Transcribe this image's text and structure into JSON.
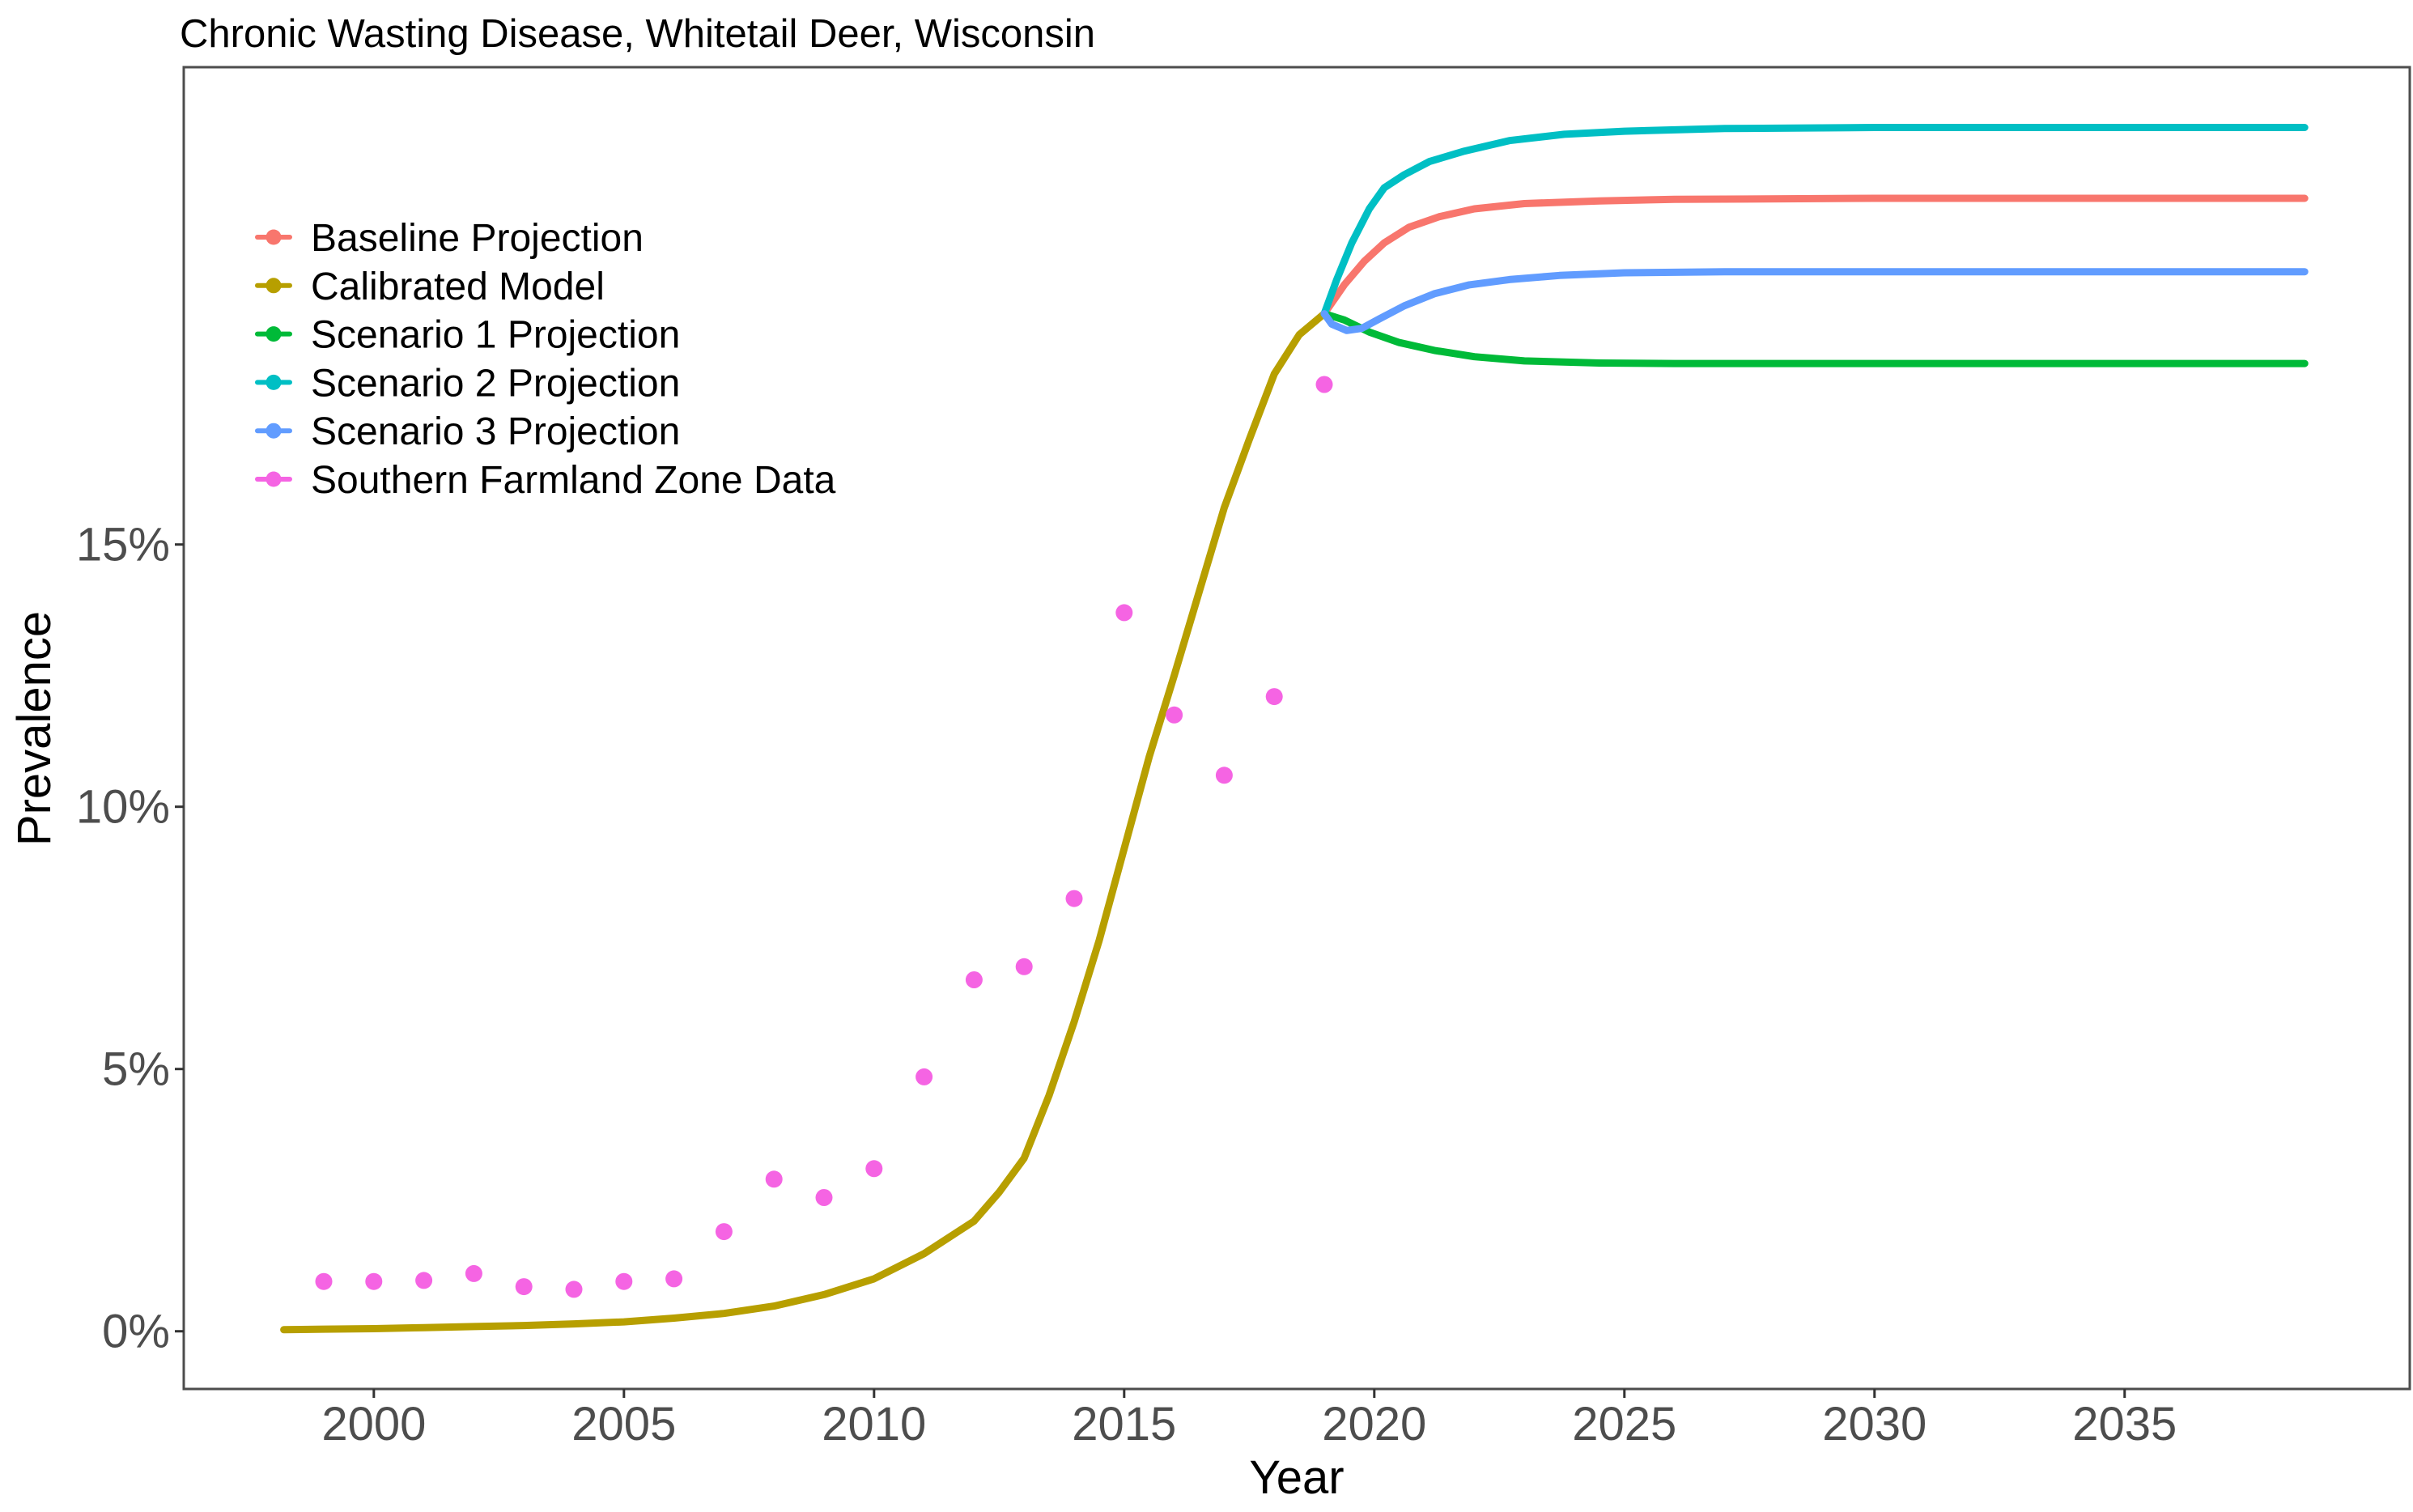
{
  "title": "Chronic Wasting Disease, Whitetail Deer, Wisconsin",
  "x_axis": {
    "label": "Year",
    "ticks": [
      {
        "value": 2000,
        "label": "2000"
      },
      {
        "value": 2005,
        "label": "2005"
      },
      {
        "value": 2010,
        "label": "2010"
      },
      {
        "value": 2015,
        "label": "2015"
      },
      {
        "value": 2020,
        "label": "2020"
      },
      {
        "value": 2025,
        "label": "2025"
      },
      {
        "value": 2030,
        "label": "2030"
      },
      {
        "value": 2035,
        "label": "2035"
      }
    ]
  },
  "y_axis": {
    "label": "Prevalence",
    "ticks": [
      {
        "value": 0,
        "label": "0%"
      },
      {
        "value": 5,
        "label": "5%"
      },
      {
        "value": 10,
        "label": "10%"
      },
      {
        "value": 15,
        "label": "15%"
      }
    ]
  },
  "legend": {
    "position": "inside-top-left",
    "items": [
      {
        "label": "Baseline Projection",
        "color": "#F8766D"
      },
      {
        "label": "Calibrated Model",
        "color": "#B79F00"
      },
      {
        "label": "Scenario 1 Projection",
        "color": "#00BA38"
      },
      {
        "label": "Scenario 2 Projection",
        "color": "#00BFC4"
      },
      {
        "label": "Scenario 3 Projection",
        "color": "#619CFF"
      },
      {
        "label": "Southern Farmland Zone Data",
        "color": "#F564E3"
      }
    ]
  },
  "colors": {
    "baseline": "#F8766D",
    "calibrated": "#B79F00",
    "scenario1": "#00BA38",
    "scenario2": "#00BFC4",
    "scenario3": "#619CFF",
    "data_points": "#F564E3",
    "axis_text": "#4D4D4D",
    "panel_border": "#4D4D4D",
    "background": "#FFFFFF"
  },
  "chart_data": {
    "type": "line",
    "title": "Chronic Wasting Disease, Whitetail Deer, Wisconsin",
    "xlabel": "Year",
    "ylabel": "Prevalence",
    "x_range": [
      1996.2,
      2040.7
    ],
    "y_range_pct": [
      -1.1,
      24.1
    ],
    "grid": false,
    "legend_position": "inside top-left",
    "units": "percent prevalence",
    "series": [
      {
        "name": "Baseline Projection",
        "type": "line",
        "color": "#F8766D",
        "points": [
          [
            2019,
            19.4
          ],
          [
            2019.4,
            19.95
          ],
          [
            2019.8,
            20.4
          ],
          [
            2020.2,
            20.75
          ],
          [
            2020.7,
            21.05
          ],
          [
            2021.3,
            21.25
          ],
          [
            2022,
            21.4
          ],
          [
            2023,
            21.5
          ],
          [
            2024.5,
            21.55
          ],
          [
            2026,
            21.58
          ],
          [
            2030,
            21.6
          ],
          [
            2038.6,
            21.6
          ]
        ]
      },
      {
        "name": "Calibrated Model",
        "type": "line",
        "color": "#B79F00",
        "points": [
          [
            1998.2,
            0.03
          ],
          [
            1999,
            0.04
          ],
          [
            2000,
            0.05
          ],
          [
            2001,
            0.07
          ],
          [
            2002,
            0.09
          ],
          [
            2003,
            0.11
          ],
          [
            2004,
            0.14
          ],
          [
            2005,
            0.18
          ],
          [
            2006,
            0.25
          ],
          [
            2007,
            0.34
          ],
          [
            2008,
            0.48
          ],
          [
            2009,
            0.7
          ],
          [
            2010,
            1.0
          ],
          [
            2011,
            1.48
          ],
          [
            2012,
            2.1
          ],
          [
            2012.5,
            2.65
          ],
          [
            2013,
            3.3
          ],
          [
            2013.5,
            4.5
          ],
          [
            2014,
            5.9
          ],
          [
            2014.5,
            7.45
          ],
          [
            2015,
            9.2
          ],
          [
            2015.5,
            10.95
          ],
          [
            2016,
            12.5
          ],
          [
            2016.5,
            14.1
          ],
          [
            2017,
            15.7
          ],
          [
            2017.5,
            17.0
          ],
          [
            2018,
            18.25
          ],
          [
            2018.5,
            19.0
          ],
          [
            2019,
            19.4
          ]
        ]
      },
      {
        "name": "Scenario 1 Projection",
        "type": "line",
        "color": "#00BA38",
        "points": [
          [
            2019,
            19.4
          ],
          [
            2019.4,
            19.28
          ],
          [
            2019.9,
            19.05
          ],
          [
            2020.5,
            18.85
          ],
          [
            2021.2,
            18.7
          ],
          [
            2022,
            18.58
          ],
          [
            2023,
            18.5
          ],
          [
            2024.5,
            18.46
          ],
          [
            2026,
            18.45
          ],
          [
            2038.6,
            18.45
          ]
        ]
      },
      {
        "name": "Scenario 2 Projection",
        "type": "line",
        "color": "#00BFC4",
        "points": [
          [
            2019,
            19.4
          ],
          [
            2019.25,
            20.05
          ],
          [
            2019.55,
            20.75
          ],
          [
            2019.9,
            21.4
          ],
          [
            2020.2,
            21.8
          ],
          [
            2020.6,
            22.05
          ],
          [
            2021.1,
            22.3
          ],
          [
            2021.8,
            22.5
          ],
          [
            2022.7,
            22.7
          ],
          [
            2023.8,
            22.82
          ],
          [
            2025,
            22.88
          ],
          [
            2027,
            22.93
          ],
          [
            2030,
            22.95
          ],
          [
            2038.6,
            22.95
          ]
        ]
      },
      {
        "name": "Scenario 3 Projection",
        "type": "line",
        "color": "#619CFF",
        "points": [
          [
            2019,
            19.4
          ],
          [
            2019.15,
            19.2
          ],
          [
            2019.45,
            19.08
          ],
          [
            2019.75,
            19.12
          ],
          [
            2020.1,
            19.3
          ],
          [
            2020.6,
            19.55
          ],
          [
            2021.2,
            19.78
          ],
          [
            2021.9,
            19.95
          ],
          [
            2022.7,
            20.05
          ],
          [
            2023.7,
            20.13
          ],
          [
            2025,
            20.18
          ],
          [
            2027,
            20.2
          ],
          [
            2038.6,
            20.2
          ]
        ]
      },
      {
        "name": "Southern Farmland Zone Data",
        "type": "points",
        "color": "#F564E3",
        "points": [
          [
            1999,
            0.95
          ],
          [
            2000,
            0.95
          ],
          [
            2001,
            0.97
          ],
          [
            2002,
            1.1
          ],
          [
            2003,
            0.85
          ],
          [
            2004,
            0.8
          ],
          [
            2005,
            0.95
          ],
          [
            2006,
            1.0
          ],
          [
            2007,
            1.9
          ],
          [
            2008,
            2.9
          ],
          [
            2009,
            2.55
          ],
          [
            2010,
            3.1
          ],
          [
            2011,
            4.85
          ],
          [
            2012,
            6.7
          ],
          [
            2013,
            6.95
          ],
          [
            2014,
            8.25
          ],
          [
            2015,
            13.7
          ],
          [
            2016,
            11.75
          ],
          [
            2017,
            10.6
          ],
          [
            2018,
            12.1
          ],
          [
            2019,
            18.05
          ]
        ]
      }
    ]
  }
}
